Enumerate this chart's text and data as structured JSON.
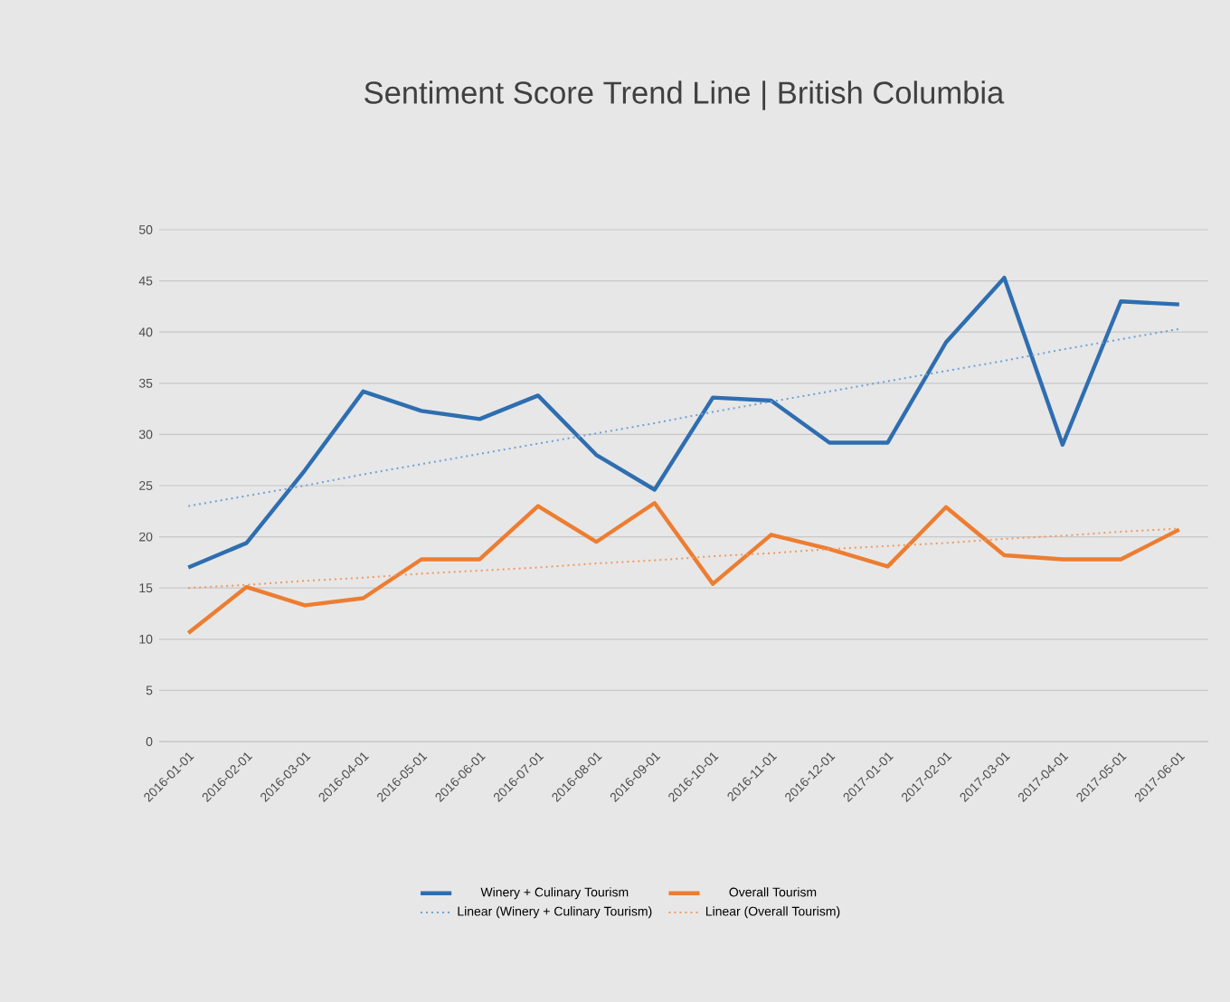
{
  "chart_data": {
    "type": "line",
    "title": "Sentiment Score Trend Line | British Columbia",
    "categories": [
      "2016-01-01",
      "2016-02-01",
      "2016-03-01",
      "2016-04-01",
      "2016-05-01",
      "2016-06-01",
      "2016-07-01",
      "2016-08-01",
      "2016-09-01",
      "2016-10-01",
      "2016-11-01",
      "2016-12-01",
      "2017-01-01",
      "2017-02-01",
      "2017-03-01",
      "2017-04-01",
      "2017-05-01",
      "2017-06-01"
    ],
    "series": [
      {
        "name": "Winery + Culinary Tourism",
        "color": "#2e6eb0",
        "values": [
          17.0,
          19.4,
          26.5,
          34.2,
          32.3,
          31.5,
          33.8,
          28.0,
          24.6,
          33.6,
          33.3,
          29.2,
          29.2,
          39.0,
          45.3,
          29.0,
          43.0,
          42.7
        ]
      },
      {
        "name": "Overall Tourism",
        "color": "#ed7d31",
        "values": [
          10.6,
          15.1,
          13.3,
          14.0,
          17.8,
          17.8,
          23.0,
          19.5,
          23.3,
          15.4,
          20.2,
          18.8,
          17.1,
          22.9,
          18.2,
          17.8,
          17.8,
          20.7
        ]
      },
      {
        "name": "Linear (Winery + Culinary Tourism)",
        "color": "#6fa0d8",
        "line_style": "dotted",
        "values": [
          23.0,
          24.0,
          25.0,
          26.1,
          27.1,
          28.1,
          29.1,
          30.1,
          31.1,
          32.2,
          33.2,
          34.2,
          35.2,
          36.2,
          37.2,
          38.3,
          39.3,
          40.3
        ]
      },
      {
        "name": "Linear (Overall Tourism)",
        "color": "#f09a60",
        "line_style": "dotted",
        "values": [
          15.0,
          15.3,
          15.7,
          16.0,
          16.4,
          16.7,
          17.0,
          17.4,
          17.7,
          18.1,
          18.4,
          18.8,
          19.1,
          19.4,
          19.8,
          20.1,
          20.5,
          20.8
        ]
      }
    ],
    "ylim": [
      0,
      50
    ],
    "yticks": [
      0,
      5,
      10,
      15,
      20,
      25,
      30,
      35,
      40,
      45,
      50
    ],
    "grid": "y",
    "legend": "bottom",
    "marker": "none"
  }
}
